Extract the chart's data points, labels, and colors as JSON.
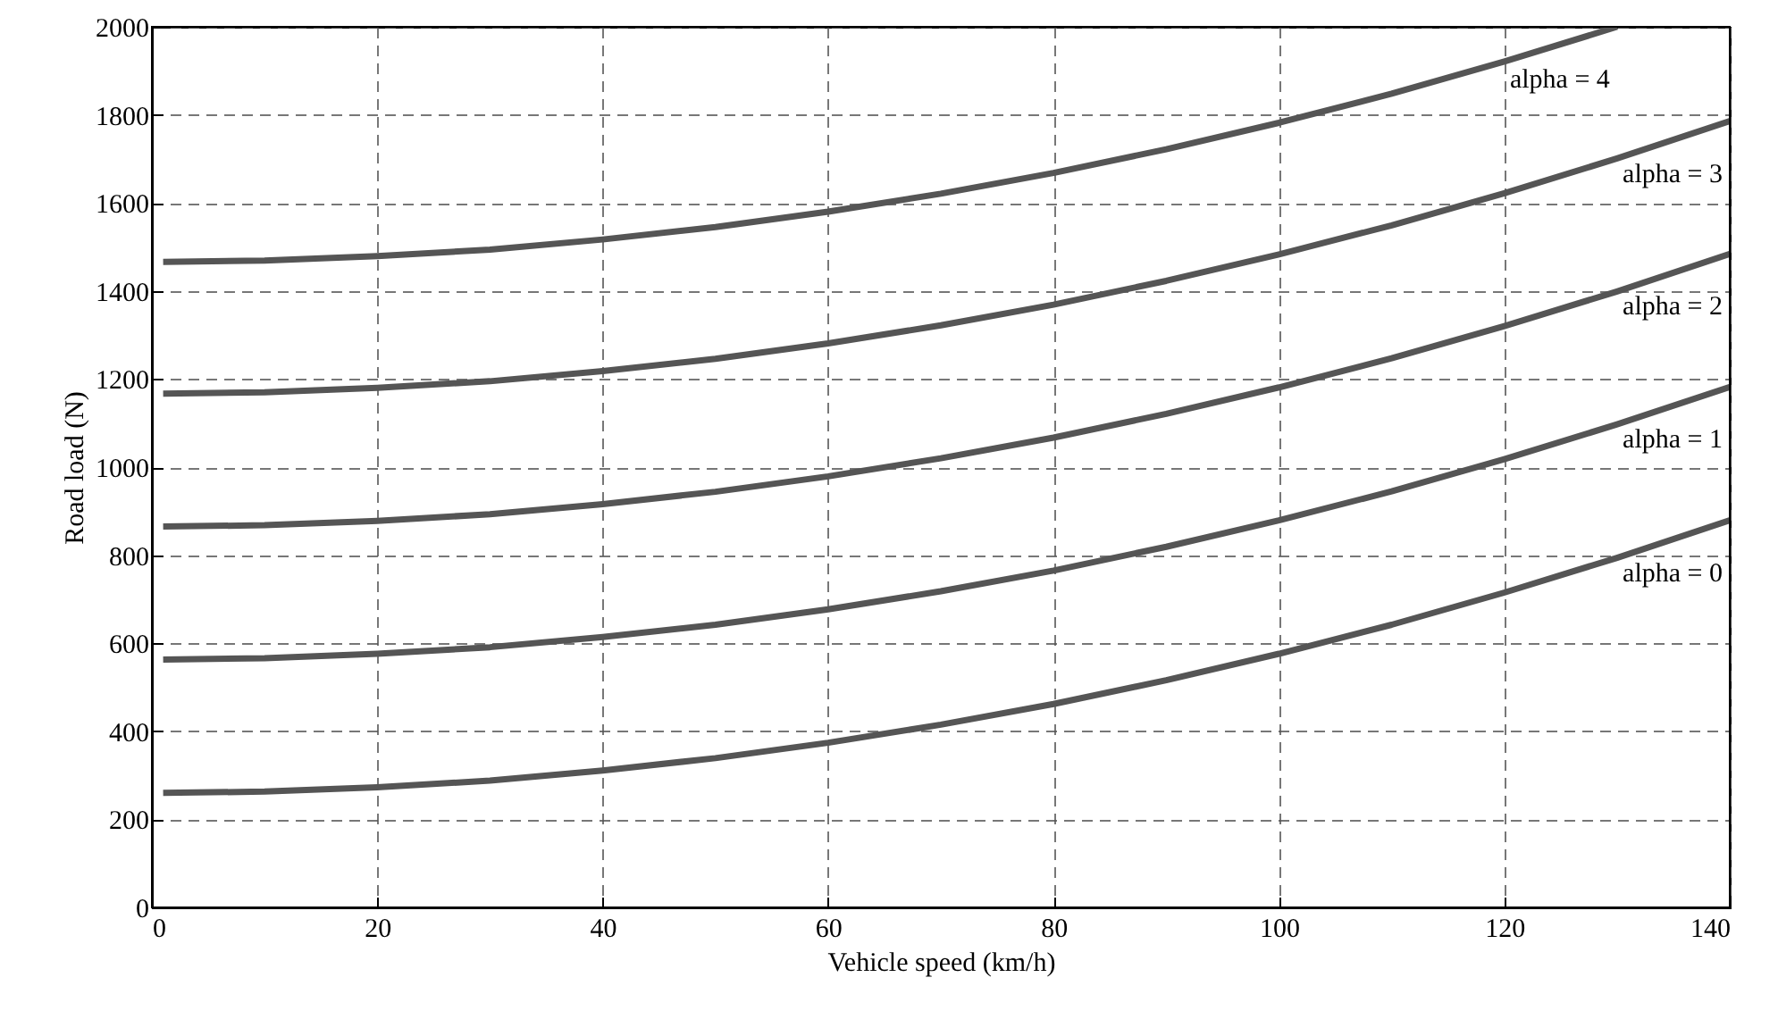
{
  "chart_data": {
    "type": "line",
    "xlabel": "Vehicle speed (km/h)",
    "ylabel": "Road load (N)",
    "x": [
      1,
      10,
      20,
      30,
      40,
      50,
      60,
      70,
      80,
      90,
      100,
      110,
      120,
      130,
      140
    ],
    "xlim": [
      0,
      140
    ],
    "xticks": [
      0,
      20,
      40,
      60,
      80,
      100,
      120,
      140
    ],
    "ylim": [
      0,
      2000
    ],
    "yticks": [
      0,
      200,
      400,
      600,
      800,
      1000,
      1200,
      1400,
      1600,
      1800,
      2000
    ],
    "grid": true,
    "line_style": "solid",
    "marker": "none",
    "series": [
      {
        "name": "alpha = 0",
        "color": "#555555",
        "values": [
          260,
          263,
          273,
          288,
          311,
          339,
          374,
          415,
          462,
          516,
          576,
          642,
          715,
          794,
          879
        ]
      },
      {
        "name": "alpha = 1",
        "color": "#555555",
        "values": [
          563,
          566,
          576,
          591,
          614,
          642,
          677,
          718,
          765,
          819,
          879,
          945,
          1018,
          1097,
          1182
        ]
      },
      {
        "name": "alpha = 2",
        "color": "#555555",
        "values": [
          865,
          868,
          878,
          893,
          916,
          944,
          979,
          1020,
          1067,
          1121,
          1181,
          1247,
          1320,
          1399,
          1484
        ]
      },
      {
        "name": "alpha = 3",
        "color": "#555555",
        "values": [
          1167,
          1170,
          1180,
          1195,
          1218,
          1246,
          1281,
          1322,
          1369,
          1423,
          1483,
          1549,
          1622,
          1701,
          1786
        ]
      },
      {
        "name": "alpha = 4",
        "color": "#555555",
        "values": [
          1466,
          1469,
          1479,
          1494,
          1517,
          1545,
          1580,
          1621,
          1668,
          1722,
          1782,
          1848,
          1921,
          2000,
          null
        ]
      }
    ]
  }
}
